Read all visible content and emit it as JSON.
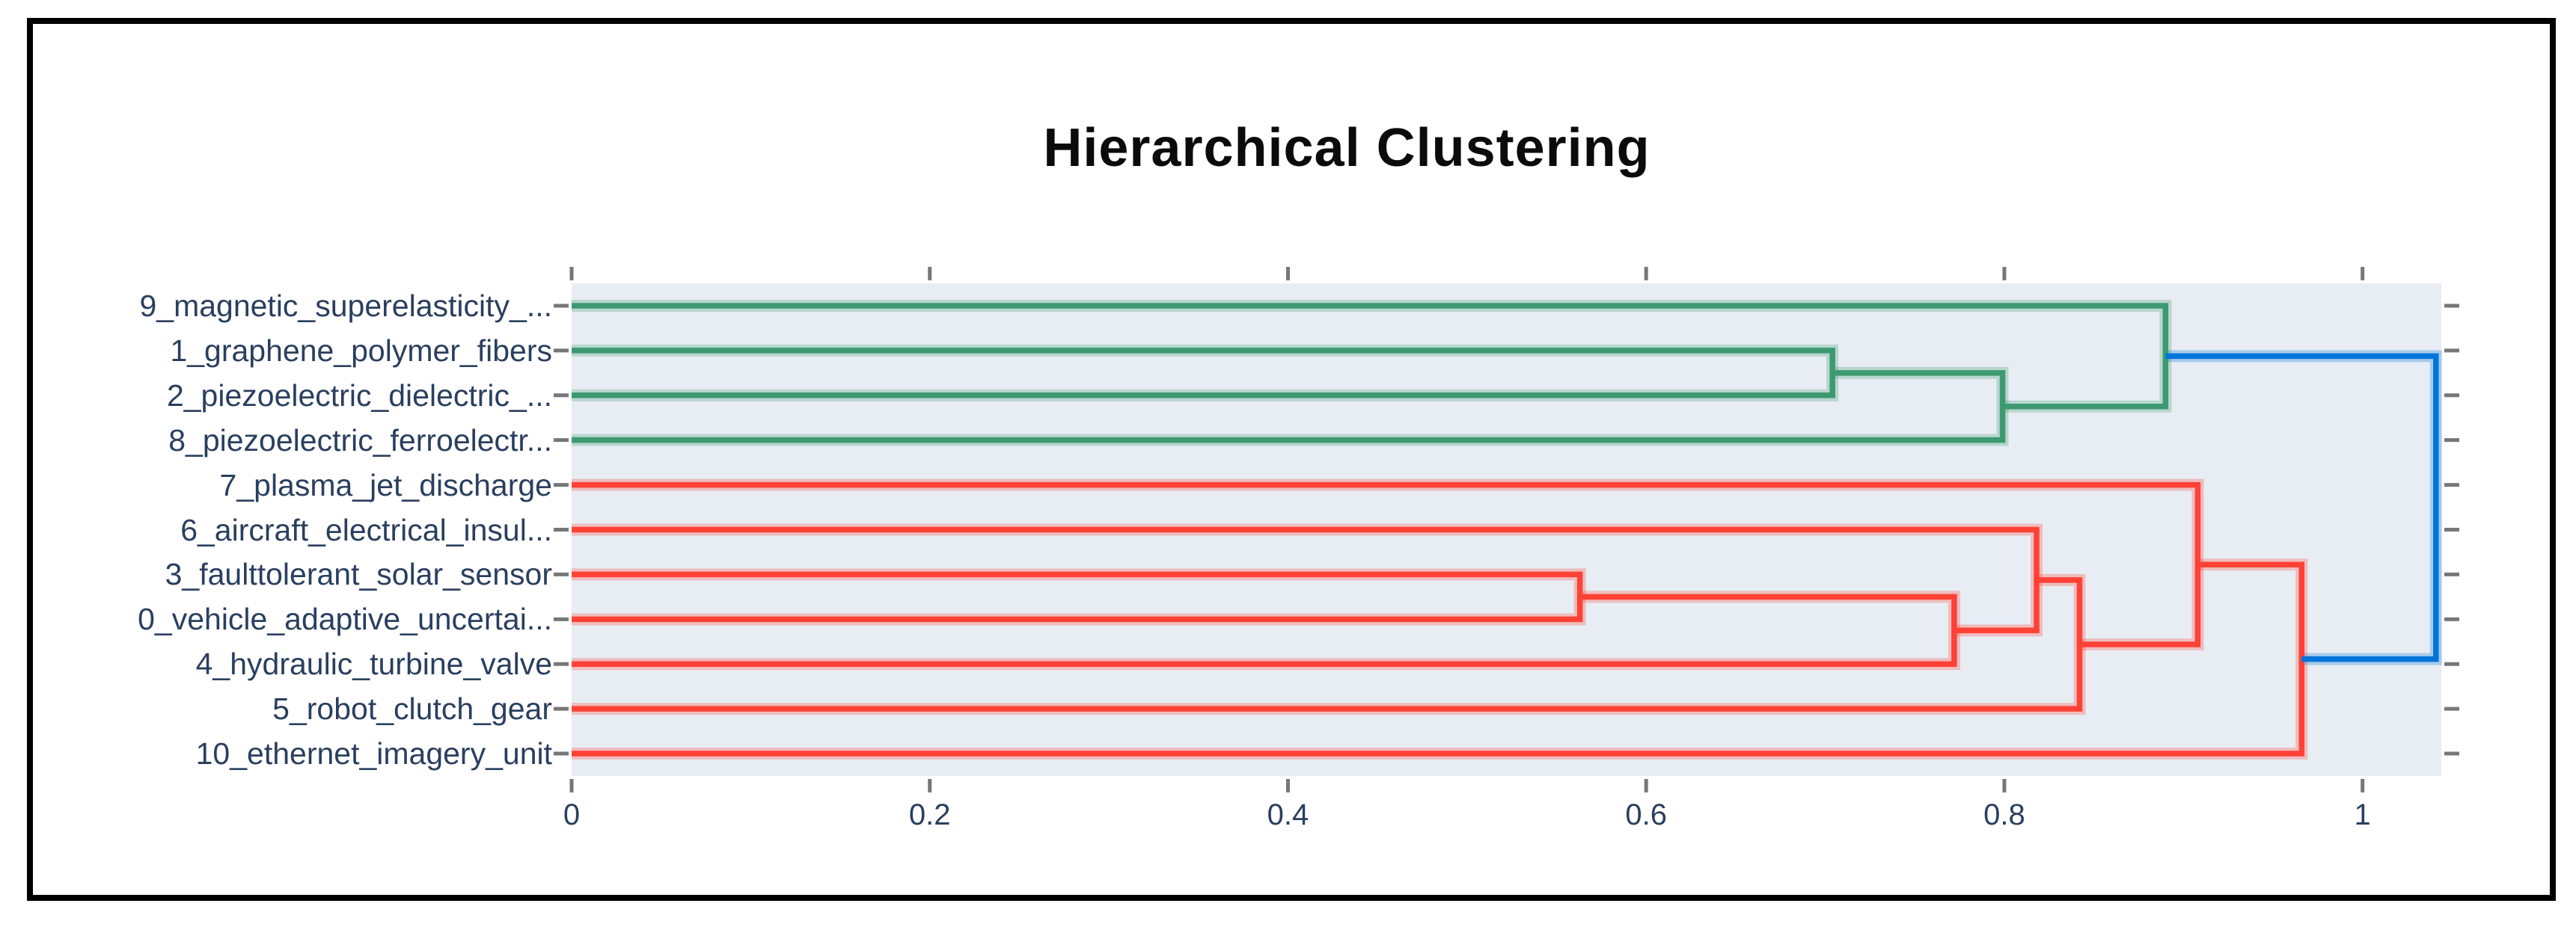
{
  "title": "Hierarchical Clustering",
  "colors": {
    "green": "#3D9970",
    "red": "#FF4136",
    "blue": "#0074D9",
    "plot_background": "#E8EDF3",
    "figure_background": "#FFFFFF",
    "frame": "#000000",
    "label_text": "#2a3f5f",
    "title_text": "#0b0b0b",
    "tick_mark": "#777777"
  },
  "x_axis": {
    "tick_labels": [
      "0",
      "0.2",
      "0.4",
      "0.6",
      "0.8",
      "1"
    ],
    "tick_values": [
      0,
      0.2,
      0.4,
      0.6,
      0.8,
      1
    ],
    "range": [
      0,
      1.044
    ]
  },
  "chart_data": {
    "type": "dendrogram",
    "orientation": "horizontal-left-to-right",
    "title": "Hierarchical Clustering",
    "x_range": [
      0,
      1.044
    ],
    "x_ticks": [
      0,
      0.2,
      0.4,
      0.6,
      0.8,
      1
    ],
    "grid": false,
    "legend": false,
    "leaves": [
      "9_magnetic_superelasticity_...",
      "1_graphene_polymer_fibers",
      "2_piezoelectric_dielectric_...",
      "8_piezoelectric_ferroelectr...",
      "7_plasma_jet_discharge",
      "6_aircraft_electrical_insul...",
      "3_faulttolerant_solar_sensor",
      "0_vehicle_adaptive_uncertai...",
      "4_hydraulic_turbine_valve",
      "5_robot_clutch_gear",
      "10_ethernet_imagery_unit"
    ],
    "merges": [
      {
        "id": "g1",
        "children": [
          "leaf:1",
          "leaf:2"
        ],
        "distance": 0.704,
        "color": "green"
      },
      {
        "id": "g2",
        "children": [
          "g1",
          "leaf:3"
        ],
        "distance": 0.799,
        "color": "green"
      },
      {
        "id": "g3",
        "children": [
          "leaf:0",
          "g2"
        ],
        "distance": 0.89,
        "color": "green"
      },
      {
        "id": "r1",
        "children": [
          "leaf:6",
          "leaf:7"
        ],
        "distance": 0.563,
        "color": "red"
      },
      {
        "id": "r2",
        "children": [
          "r1",
          "leaf:8"
        ],
        "distance": 0.772,
        "color": "red"
      },
      {
        "id": "r3",
        "children": [
          "leaf:5",
          "r2"
        ],
        "distance": 0.818,
        "color": "red"
      },
      {
        "id": "r4",
        "children": [
          "r3",
          "leaf:9"
        ],
        "distance": 0.842,
        "color": "red"
      },
      {
        "id": "r5",
        "children": [
          "leaf:4",
          "r4"
        ],
        "distance": 0.908,
        "color": "red"
      },
      {
        "id": "r6",
        "children": [
          "r5",
          "leaf:10"
        ],
        "distance": 0.966,
        "color": "red"
      },
      {
        "id": "root",
        "children": [
          "g3",
          "r6"
        ],
        "distance": 1.041,
        "color": "blue"
      }
    ]
  }
}
